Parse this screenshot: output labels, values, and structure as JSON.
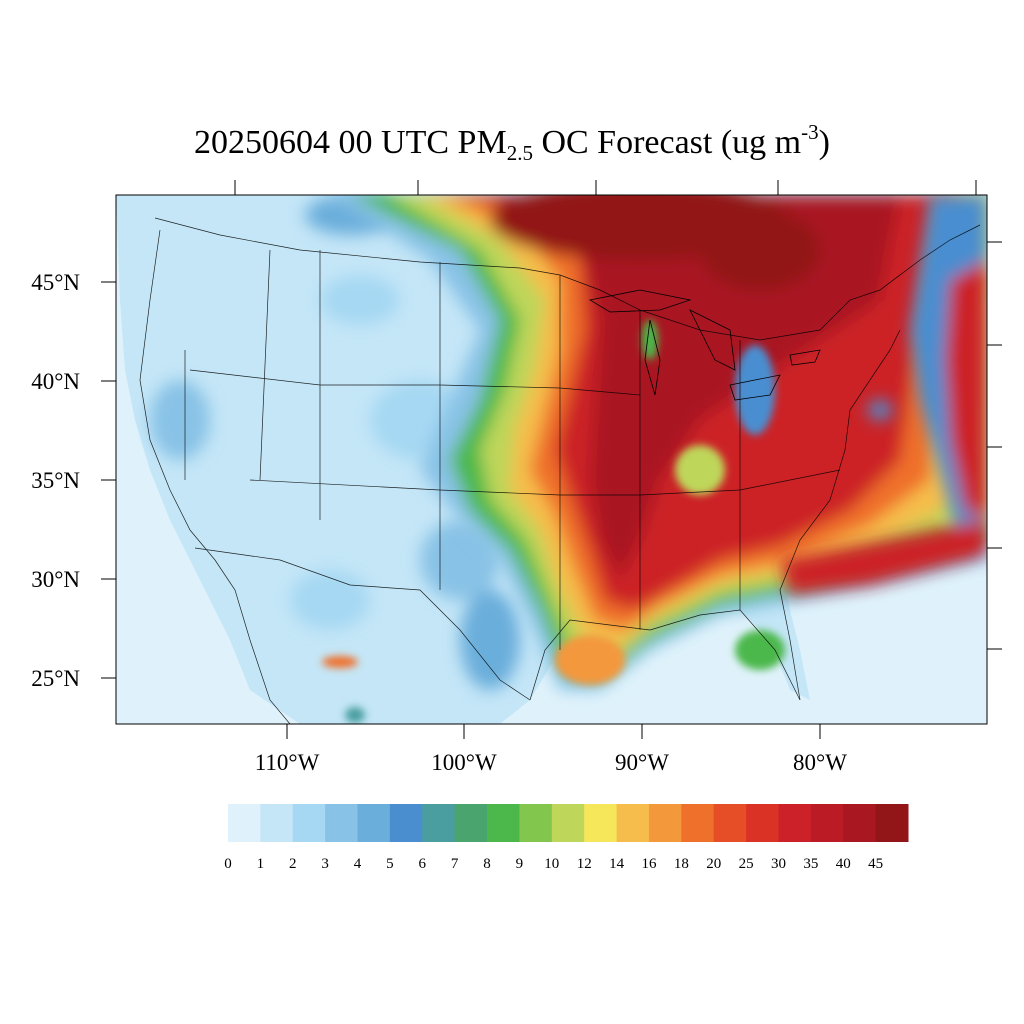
{
  "title": {
    "prefix": "20250604 00 UTC PM",
    "subscript": "2.5",
    "middle": " OC Forecast (ug m",
    "superscript": "-3",
    "suffix": ")"
  },
  "map": {
    "lat_labels": [
      "45°N",
      "40°N",
      "35°N",
      "30°N",
      "25°N"
    ],
    "lon_labels": [
      "110°W",
      "100°W",
      "90°W",
      "80°W"
    ]
  },
  "colorbar": {
    "labels": [
      "0",
      "1",
      "2",
      "3",
      "4",
      "5",
      "6",
      "7",
      "8",
      "9",
      "10",
      "12",
      "14",
      "16",
      "18",
      "20",
      "25",
      "30",
      "35",
      "40",
      "45"
    ],
    "colors": [
      "#dff2fb",
      "#c4e6f7",
      "#a6d8f3",
      "#88c2e6",
      "#6aaedb",
      "#4a8ed0",
      "#4a9ea0",
      "#4aa46e",
      "#4cb84c",
      "#82c64e",
      "#bed65a",
      "#f6e75a",
      "#f6bd4c",
      "#f4983c",
      "#ef702a",
      "#e64e28",
      "#da3326",
      "#cc2128",
      "#bb1b24",
      "#a91820",
      "#921518"
    ]
  },
  "palette": {
    "background_ocean": "#dff2fb",
    "land_low": "#c4e6f7",
    "plume_max": "#a01818"
  }
}
